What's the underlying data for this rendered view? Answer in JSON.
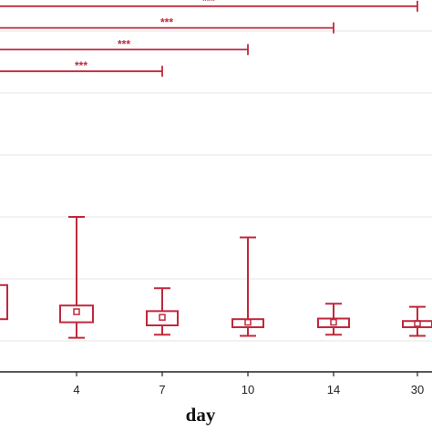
{
  "chart_data": {
    "type": "box",
    "xlabel": "day",
    "categories": [
      "",
      "4",
      "7",
      "10",
      "14",
      "30"
    ],
    "y_gridlines": [
      0.5,
      1.5,
      2.5,
      3.5,
      4.5,
      5.5
    ],
    "ylim": [
      0,
      6
    ],
    "grid": true,
    "color": "#c0283c",
    "boxes": [
      {
        "category": "",
        "min": null,
        "q1": 0.85,
        "median": null,
        "q3": 1.4,
        "max": null
      },
      {
        "category": "4",
        "min": 0.55,
        "q1": 0.8,
        "median": 0.97,
        "q3": 1.07,
        "max": 2.5
      },
      {
        "category": "7",
        "min": 0.6,
        "q1": 0.75,
        "median": 0.88,
        "q3": 0.98,
        "max": 1.35
      },
      {
        "category": "10",
        "min": 0.58,
        "q1": 0.72,
        "median": 0.8,
        "q3": 0.85,
        "max": 2.17
      },
      {
        "category": "14",
        "min": 0.6,
        "q1": 0.72,
        "median": 0.8,
        "q3": 0.86,
        "max": 1.1
      },
      {
        "category": "30",
        "min": 0.58,
        "q1": 0.72,
        "median": 0.78,
        "q3": 0.82,
        "max": 1.05
      }
    ],
    "significance": [
      {
        "label": "***",
        "from": "",
        "to": "7",
        "y": 4.85
      },
      {
        "label": "***",
        "from": "",
        "to": "10",
        "y": 5.2
      },
      {
        "label": "***",
        "from": "",
        "to": "14",
        "y": 5.55
      },
      {
        "label": "***",
        "from": "",
        "to": "30",
        "y": 5.9
      }
    ]
  }
}
